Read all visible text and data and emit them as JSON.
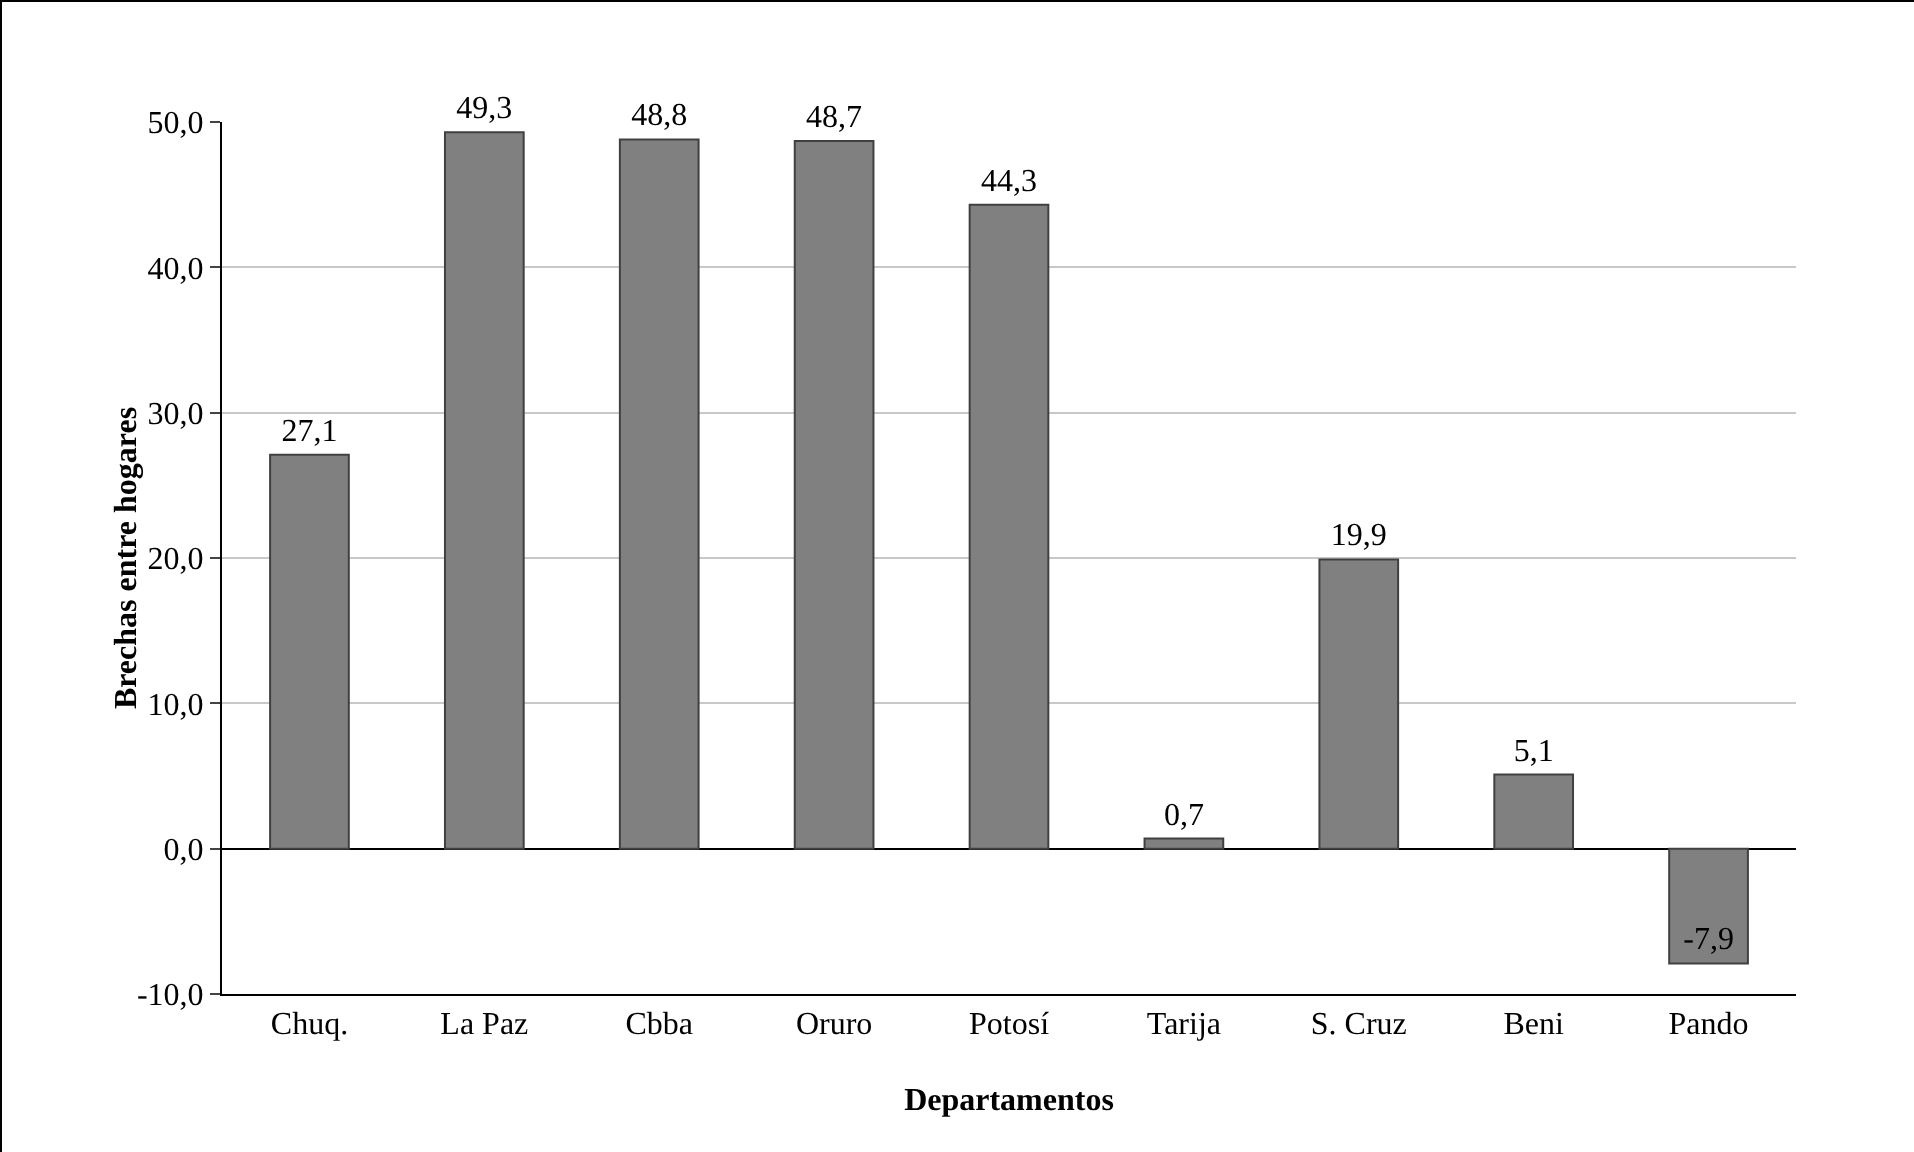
{
  "chart_data": {
    "type": "bar",
    "xlabel": "Departamentos",
    "ylabel": "Brechas entre hogares",
    "categories": [
      "Chuq.",
      "La Paz",
      "Cbba",
      "Oruro",
      "Potosí",
      "Tarija",
      "S. Cruz",
      "Beni",
      "Pando"
    ],
    "values": [
      27.1,
      49.3,
      48.8,
      48.7,
      44.3,
      0.7,
      19.9,
      5.1,
      -7.9
    ],
    "value_labels": [
      "27,1",
      "49,3",
      "48,8",
      "48,7",
      "44,3",
      "0,7",
      "19,9",
      "5,1",
      "-7,9"
    ],
    "color": "#808080",
    "ylim": [
      -10,
      50
    ],
    "yticks": [
      {
        "value": -10,
        "label": "-10,0"
      },
      {
        "value": 0,
        "label": "0,0"
      },
      {
        "value": 10,
        "label": "10,0"
      },
      {
        "value": 20,
        "label": "20,0"
      },
      {
        "value": 30,
        "label": "30,0"
      },
      {
        "value": 40,
        "label": "40,0"
      },
      {
        "value": 50,
        "label": "50,0"
      }
    ],
    "grid": "y"
  }
}
